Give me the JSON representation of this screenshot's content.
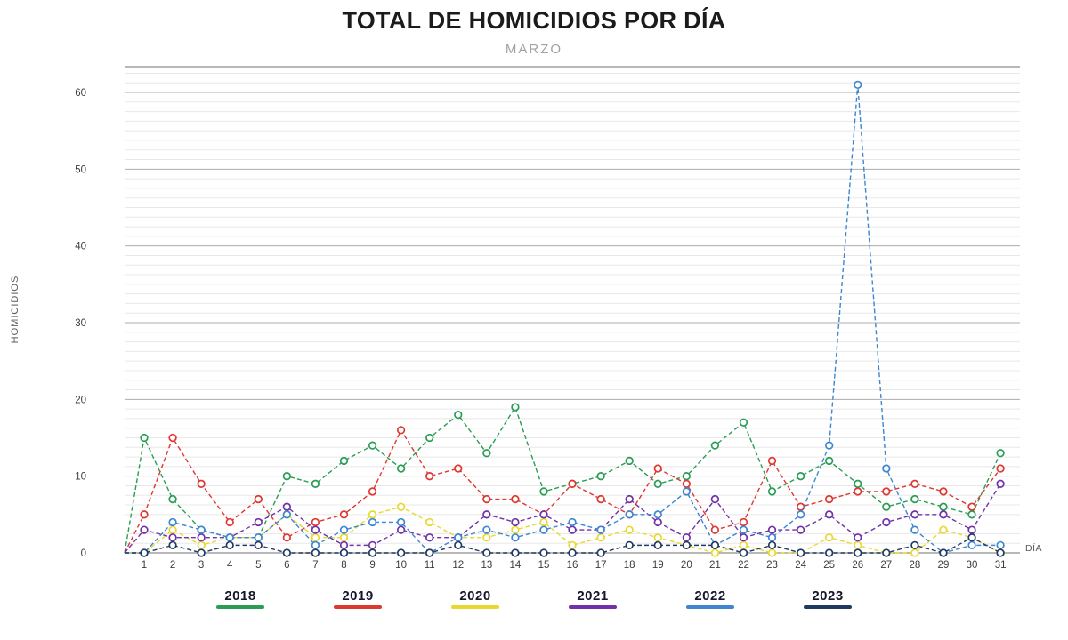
{
  "page": {
    "title": "TOTAL DE HOMICIDIOS POR DÍA",
    "subtitle": "MARZO"
  },
  "chart_data": {
    "type": "line",
    "title": "TOTAL DE HOMICIDIOS POR DÍA",
    "subtitle": "MARZO",
    "xlabel": "DÍA",
    "ylabel": "HOMICIDIOS",
    "x": [
      1,
      2,
      3,
      4,
      5,
      6,
      7,
      8,
      9,
      10,
      11,
      12,
      13,
      14,
      15,
      16,
      17,
      18,
      19,
      20,
      21,
      22,
      23,
      24,
      25,
      26,
      27,
      28,
      29,
      30,
      31
    ],
    "ylim": [
      0,
      63
    ],
    "yticks": [
      0,
      10,
      20,
      30,
      40,
      50,
      60
    ],
    "grid": "horizontal, light minors with darker major lines every 10",
    "legend_position": "bottom",
    "line_style": "dashed with open circle markers",
    "series": [
      {
        "name": "2018",
        "color": "#2a9d55",
        "values": [
          15,
          7,
          3,
          2,
          2,
          10,
          9,
          12,
          14,
          11,
          15,
          18,
          13,
          19,
          8,
          9,
          10,
          12,
          9,
          10,
          14,
          17,
          8,
          10,
          12,
          9,
          6,
          7,
          6,
          5,
          13
        ]
      },
      {
        "name": "2019",
        "color": "#de3831",
        "values": [
          5,
          15,
          9,
          4,
          7,
          2,
          4,
          5,
          8,
          16,
          10,
          11,
          7,
          7,
          5,
          9,
          7,
          5,
          11,
          9,
          3,
          4,
          12,
          6,
          7,
          8,
          8,
          9,
          8,
          6,
          11
        ]
      },
      {
        "name": "2020",
        "color": "#e9d830",
        "values": [
          0,
          3,
          1,
          2,
          2,
          5,
          2,
          2,
          5,
          6,
          4,
          2,
          2,
          3,
          4,
          1,
          2,
          3,
          2,
          1,
          0,
          1,
          0,
          0,
          2,
          1,
          0,
          0,
          3,
          2,
          0
        ]
      },
      {
        "name": "2021",
        "color": "#7131a8",
        "values": [
          3,
          2,
          2,
          2,
          4,
          6,
          3,
          1,
          1,
          3,
          2,
          2,
          5,
          4,
          5,
          3,
          3,
          7,
          4,
          2,
          7,
          2,
          3,
          3,
          5,
          2,
          4,
          5,
          5,
          3,
          9
        ]
      },
      {
        "name": "2022",
        "color": "#3e86d0",
        "values": [
          0,
          4,
          3,
          2,
          2,
          5,
          1,
          3,
          4,
          4,
          0,
          2,
          3,
          2,
          3,
          4,
          3,
          5,
          5,
          8,
          1,
          3,
          2,
          5,
          14,
          61,
          11,
          3,
          0,
          1,
          1
        ]
      },
      {
        "name": "2023",
        "color": "#203a63",
        "values": [
          0,
          1,
          0,
          1,
          1,
          0,
          0,
          0,
          0,
          0,
          0,
          1,
          0,
          0,
          0,
          0,
          0,
          1,
          1,
          1,
          1,
          0,
          1,
          0,
          0,
          0,
          0,
          1,
          0,
          2,
          0
        ]
      }
    ]
  }
}
